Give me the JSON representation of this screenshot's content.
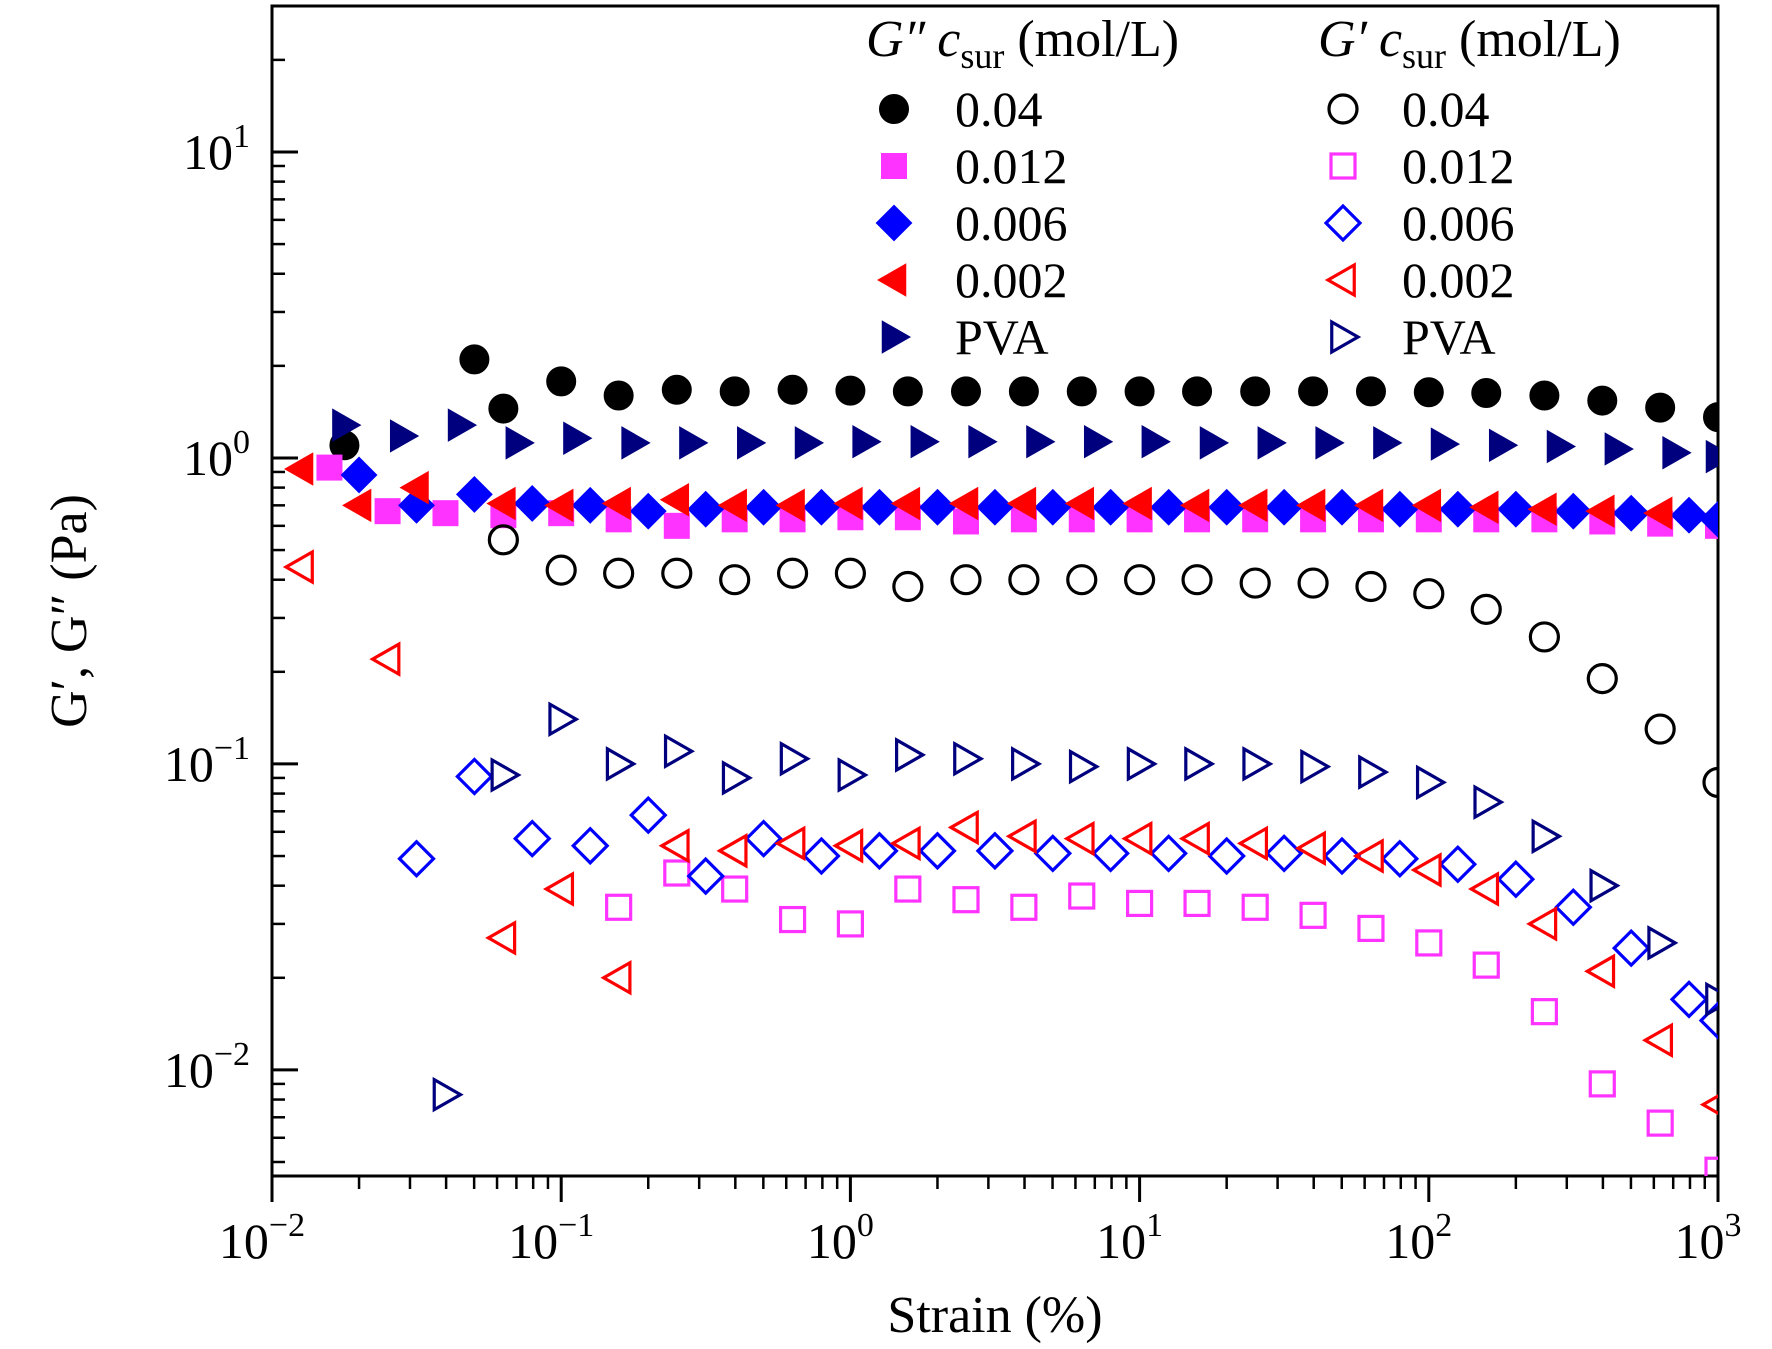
{
  "chart_data": {
    "type": "scatter",
    "title": "",
    "xlabel": "Strain (%)",
    "ylabel": "G′, G″ (Pa)",
    "xscale": "log",
    "yscale": "log",
    "xlim": [
      0.01,
      1000
    ],
    "ylim": [
      0.0045,
      30
    ],
    "grid": false,
    "legend_position": "top-right",
    "x_ticks": [
      {
        "value": 0.01,
        "base": "10",
        "exp": "−2"
      },
      {
        "value": 0.1,
        "base": "10",
        "exp": "−1"
      },
      {
        "value": 1,
        "base": "10",
        "exp": "0"
      },
      {
        "value": 10,
        "base": "10",
        "exp": "1"
      },
      {
        "value": 100,
        "base": "10",
        "exp": "2"
      },
      {
        "value": 1000,
        "base": "10",
        "exp": "3"
      }
    ],
    "y_ticks": [
      {
        "value": 0.01,
        "base": "10",
        "exp": "−2"
      },
      {
        "value": 0.1,
        "base": "10",
        "exp": "−1"
      },
      {
        "value": 1,
        "base": "10",
        "exp": "0"
      },
      {
        "value": 10,
        "base": "10",
        "exp": "1"
      }
    ],
    "legend": {
      "loss_header": {
        "symbol": "G″",
        "var": "c",
        "sub": "sur",
        "unit": " (mol/L)"
      },
      "storage_header": {
        "symbol": "G′",
        "var": "c",
        "sub": "sur",
        "unit": " (mol/L)"
      }
    },
    "series": [
      {
        "name": "0.04",
        "modulus": "G″",
        "marker": "circle",
        "filled": true,
        "color": "#000000",
        "x": [
          0.0178,
          0.0501,
          0.0631,
          0.1,
          0.158,
          0.251,
          0.398,
          0.631,
          1.0,
          1.58,
          2.51,
          3.98,
          6.31,
          10,
          15.8,
          25.1,
          39.8,
          63.1,
          100,
          158,
          251,
          398,
          631,
          1000
        ],
        "y": [
          1.1,
          2.1,
          1.45,
          1.78,
          1.6,
          1.67,
          1.65,
          1.67,
          1.66,
          1.65,
          1.65,
          1.65,
          1.65,
          1.65,
          1.65,
          1.65,
          1.65,
          1.65,
          1.64,
          1.63,
          1.6,
          1.54,
          1.46,
          1.36
        ]
      },
      {
        "name": "0.012",
        "modulus": "G″",
        "marker": "square",
        "filled": true,
        "color": "#ff33ff",
        "x": [
          0.0158,
          0.0251,
          0.0398,
          0.0631,
          0.1,
          0.158,
          0.251,
          0.398,
          0.631,
          1.0,
          1.58,
          2.51,
          3.98,
          6.31,
          10,
          15.8,
          25.1,
          39.8,
          63.1,
          100,
          158,
          251,
          398,
          631,
          1000
        ],
        "y": [
          0.93,
          0.67,
          0.66,
          0.65,
          0.66,
          0.63,
          0.6,
          0.63,
          0.63,
          0.64,
          0.64,
          0.62,
          0.63,
          0.63,
          0.63,
          0.63,
          0.63,
          0.63,
          0.63,
          0.63,
          0.63,
          0.63,
          0.62,
          0.61,
          0.6
        ]
      },
      {
        "name": "0.006",
        "modulus": "G″",
        "marker": "diamond",
        "filled": true,
        "color": "#0000ff",
        "x": [
          0.02,
          0.0316,
          0.0501,
          0.0794,
          0.126,
          0.2,
          0.316,
          0.501,
          0.794,
          1.26,
          2.0,
          3.16,
          5.01,
          7.94,
          12.6,
          20.0,
          31.6,
          50.1,
          79.4,
          126,
          200,
          316,
          501,
          794,
          1000
        ],
        "y": [
          0.88,
          0.7,
          0.76,
          0.71,
          0.7,
          0.67,
          0.68,
          0.69,
          0.69,
          0.69,
          0.69,
          0.69,
          0.69,
          0.69,
          0.69,
          0.69,
          0.69,
          0.69,
          0.68,
          0.68,
          0.68,
          0.67,
          0.66,
          0.65,
          0.63
        ]
      },
      {
        "name": "0.002",
        "modulus": "G″",
        "marker": "triangle-left",
        "filled": true,
        "color": "#ff0000",
        "x": [
          0.0126,
          0.02,
          0.0316,
          0.0631,
          0.1,
          0.158,
          0.251,
          0.398,
          0.631,
          1.0,
          1.58,
          2.51,
          3.98,
          6.31,
          10,
          15.8,
          25.1,
          39.8,
          63.1,
          100,
          158,
          251,
          398,
          631
        ],
        "y": [
          0.92,
          0.7,
          0.8,
          0.71,
          0.7,
          0.71,
          0.73,
          0.7,
          0.7,
          0.71,
          0.71,
          0.71,
          0.71,
          0.71,
          0.71,
          0.7,
          0.7,
          0.7,
          0.7,
          0.7,
          0.69,
          0.68,
          0.67,
          0.66
        ]
      },
      {
        "name": "PVA",
        "modulus": "G″",
        "marker": "triangle-right",
        "filled": true,
        "color": "#00007f",
        "x": [
          0.0178,
          0.0282,
          0.0447,
          0.0708,
          0.112,
          0.178,
          0.282,
          0.447,
          0.708,
          1.12,
          1.78,
          2.82,
          4.47,
          7.08,
          11.2,
          17.8,
          28.2,
          44.7,
          70.8,
          112,
          178,
          282,
          447,
          708,
          1000
        ],
        "y": [
          1.28,
          1.18,
          1.28,
          1.12,
          1.16,
          1.12,
          1.12,
          1.12,
          1.12,
          1.13,
          1.13,
          1.13,
          1.13,
          1.13,
          1.13,
          1.12,
          1.12,
          1.12,
          1.12,
          1.11,
          1.1,
          1.09,
          1.07,
          1.04,
          1.01
        ]
      },
      {
        "name": "0.04",
        "modulus": "G′",
        "marker": "circle",
        "filled": false,
        "color": "#000000",
        "x": [
          0.0631,
          0.1,
          0.158,
          0.251,
          0.398,
          0.631,
          1.0,
          1.58,
          2.51,
          3.98,
          6.31,
          10,
          15.8,
          25.1,
          39.8,
          63.1,
          100,
          158,
          251,
          398,
          631,
          1000
        ],
        "y": [
          0.54,
          0.43,
          0.42,
          0.42,
          0.4,
          0.42,
          0.42,
          0.38,
          0.4,
          0.4,
          0.4,
          0.4,
          0.4,
          0.39,
          0.39,
          0.38,
          0.36,
          0.32,
          0.26,
          0.19,
          0.13,
          0.087
        ]
      },
      {
        "name": "0.012",
        "modulus": "G′",
        "marker": "square",
        "filled": false,
        "color": "#ff33ff",
        "x": [
          0.158,
          0.251,
          0.398,
          0.631,
          1.0,
          1.58,
          2.51,
          3.98,
          6.31,
          10,
          15.8,
          25.1,
          39.8,
          63.1,
          100,
          158,
          251,
          398,
          631,
          1000
        ],
        "y": [
          0.034,
          0.044,
          0.039,
          0.031,
          0.03,
          0.039,
          0.036,
          0.034,
          0.037,
          0.035,
          0.035,
          0.034,
          0.032,
          0.029,
          0.026,
          0.022,
          0.0155,
          0.009,
          0.0067,
          0.0047
        ]
      },
      {
        "name": "0.006",
        "modulus": "G′",
        "marker": "diamond",
        "filled": false,
        "color": "#0000ff",
        "x": [
          0.0316,
          0.0501,
          0.0794,
          0.126,
          0.2,
          0.316,
          0.501,
          0.794,
          1.26,
          2.0,
          3.16,
          5.01,
          7.94,
          12.6,
          20.0,
          31.6,
          50.1,
          79.4,
          126,
          200,
          316,
          501,
          794,
          1000
        ],
        "y": [
          0.049,
          0.091,
          0.057,
          0.054,
          0.068,
          0.043,
          0.057,
          0.05,
          0.052,
          0.052,
          0.052,
          0.051,
          0.051,
          0.051,
          0.05,
          0.051,
          0.05,
          0.049,
          0.047,
          0.042,
          0.034,
          0.025,
          0.017,
          0.0145
        ]
      },
      {
        "name": "0.002",
        "modulus": "G′",
        "marker": "triangle-left",
        "filled": false,
        "color": "#ff0000",
        "x": [
          0.0126,
          0.0251,
          0.0631,
          0.1,
          0.158,
          0.251,
          0.398,
          0.631,
          1.0,
          1.58,
          2.51,
          3.98,
          6.31,
          10,
          15.8,
          25.1,
          39.8,
          63.1,
          100,
          158,
          251,
          398,
          631,
          1000
        ],
        "y": [
          0.44,
          0.22,
          0.027,
          0.039,
          0.02,
          0.054,
          0.052,
          0.055,
          0.054,
          0.055,
          0.062,
          0.058,
          0.057,
          0.057,
          0.057,
          0.055,
          0.053,
          0.05,
          0.045,
          0.039,
          0.03,
          0.021,
          0.0125,
          0.0077
        ]
      },
      {
        "name": "PVA",
        "modulus": "G′",
        "marker": "triangle-right",
        "filled": false,
        "color": "#00007f",
        "x": [
          0.0398,
          0.0631,
          0.1,
          0.158,
          0.251,
          0.398,
          0.631,
          1.0,
          1.58,
          2.51,
          3.98,
          6.31,
          10,
          15.8,
          25.1,
          39.8,
          63.1,
          100,
          158,
          251,
          398,
          631,
          1000
        ],
        "y": [
          0.0083,
          0.092,
          0.14,
          0.1,
          0.11,
          0.09,
          0.104,
          0.092,
          0.107,
          0.104,
          0.1,
          0.098,
          0.1,
          0.1,
          0.1,
          0.098,
          0.094,
          0.087,
          0.075,
          0.058,
          0.04,
          0.026,
          0.017
        ]
      }
    ]
  }
}
